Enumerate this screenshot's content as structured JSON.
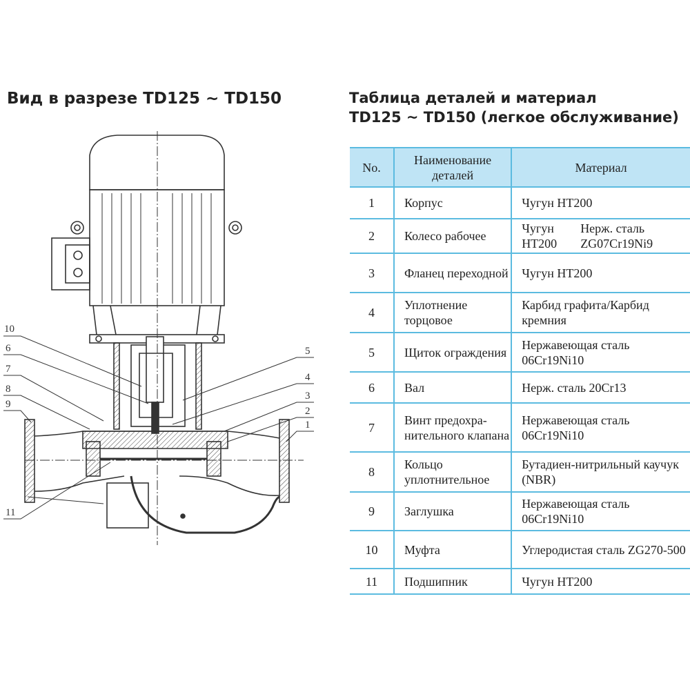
{
  "left_title": "Вид в разрезе TD125 ~ TD150",
  "right_title_line1": "Таблица деталей и материал",
  "right_title_line2": "TD125 ~ TD150  (легкое обслуживание)",
  "diagram_labels": {
    "l10": "10",
    "l6": "6",
    "l7": "7",
    "l8": "8",
    "l9": "9",
    "l11": "11",
    "r5": "5",
    "r4": "4",
    "r3": "3",
    "r2": "2",
    "r1": "1"
  },
  "table": {
    "headers": [
      "No.",
      "Наименование деталей",
      "Материал"
    ],
    "header_color": "#bfe4f5",
    "border_color": "#5bbbe0",
    "rows": [
      {
        "no": "1",
        "name": "Корпус",
        "material": "Чугун HT200"
      },
      {
        "no": "2",
        "name": "Колесо рабочее",
        "material_a": "Чугун HT200",
        "material_b": "Нерж. сталь ZG07Cr19Ni9"
      },
      {
        "no": "3",
        "name": "Фланец переходной",
        "material": "Чугун HT200"
      },
      {
        "no": "4",
        "name": "Уплотнение торцовое",
        "material": "Карбид графита/Карбид кремния"
      },
      {
        "no": "5",
        "name": "Щиток ограждения",
        "material": "Нержавеющая сталь 06Cr19Ni10"
      },
      {
        "no": "6",
        "name": "Вал",
        "material": "Нерж. сталь 20Cr13"
      },
      {
        "no": "7",
        "name": "Винт предохра-нительного клапана",
        "material": "Нержавеющая сталь 06Cr19Ni10"
      },
      {
        "no": "8",
        "name": "Кольцо уплотнительное",
        "material": "Бутадиен-нитрильный каучук (NBR)"
      },
      {
        "no": "9",
        "name": "Заглушка",
        "material": "Нержавеющая сталь 06Cr19Ni10"
      },
      {
        "no": "10",
        "name": "Муфта",
        "material": "Углеродистая сталь ZG270-500"
      },
      {
        "no": "11",
        "name": "Подшипник",
        "material": "Чугун HT200"
      }
    ]
  }
}
